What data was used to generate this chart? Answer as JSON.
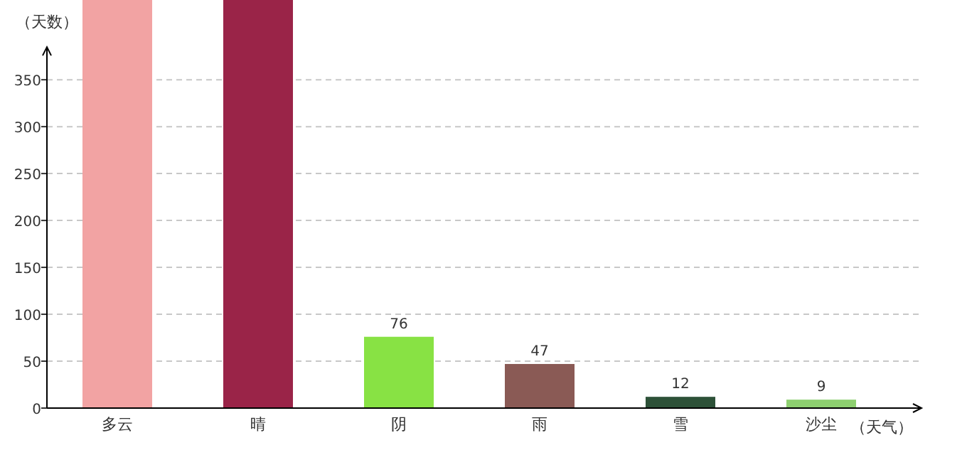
{
  "chart_data": {
    "type": "bar",
    "xlabel": "（天气）",
    "ylabel": "（天数）",
    "categories": [
      "多云",
      "晴",
      "阴",
      "雨",
      "雪",
      "沙尘"
    ],
    "values": [
      435,
      435,
      76,
      47,
      12,
      9
    ],
    "colors": [
      "#f2a3a3",
      "#9a2448",
      "#88e244",
      "#8a5a55",
      "#2d5138",
      "#8ed070"
    ],
    "value_labels": [
      null,
      null,
      "76",
      "47",
      "12",
      "9"
    ],
    "ylim": [
      0,
      435
    ],
    "yticks": [
      0,
      50,
      100,
      150,
      200,
      250,
      300,
      350
    ],
    "grid": "y"
  }
}
